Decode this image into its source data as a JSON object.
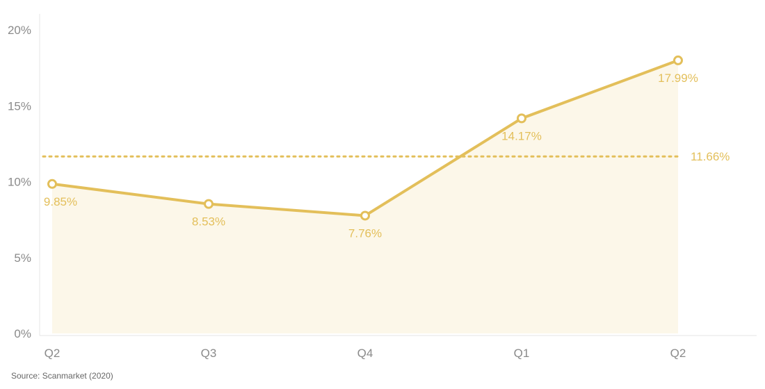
{
  "chart_data": {
    "type": "line",
    "categories": [
      "Q2",
      "Q3",
      "Q4",
      "Q1",
      "Q2"
    ],
    "series": [
      {
        "values": [
          9.85,
          8.53,
          7.76,
          14.17,
          17.99
        ],
        "labels": [
          "9.85%",
          "8.53%",
          "7.76%",
          "14.17%",
          "17.99%"
        ]
      }
    ],
    "reference_line": {
      "value": 11.66,
      "label": "11.66%",
      "style": "dotted"
    },
    "ylim": [
      0,
      20
    ],
    "yticks": [
      0,
      5,
      10,
      15,
      20
    ],
    "ytick_labels": [
      "0%",
      "5%",
      "10%",
      "15%",
      "20%"
    ],
    "grid": false,
    "fill_under_line": true,
    "colors": {
      "line": "#e3bf5a",
      "fill": "#fcf7e9",
      "axis": "#e6e6e6",
      "tick_text": "#8a8a8a"
    }
  },
  "source": "Source: Scanmarket (2020)"
}
